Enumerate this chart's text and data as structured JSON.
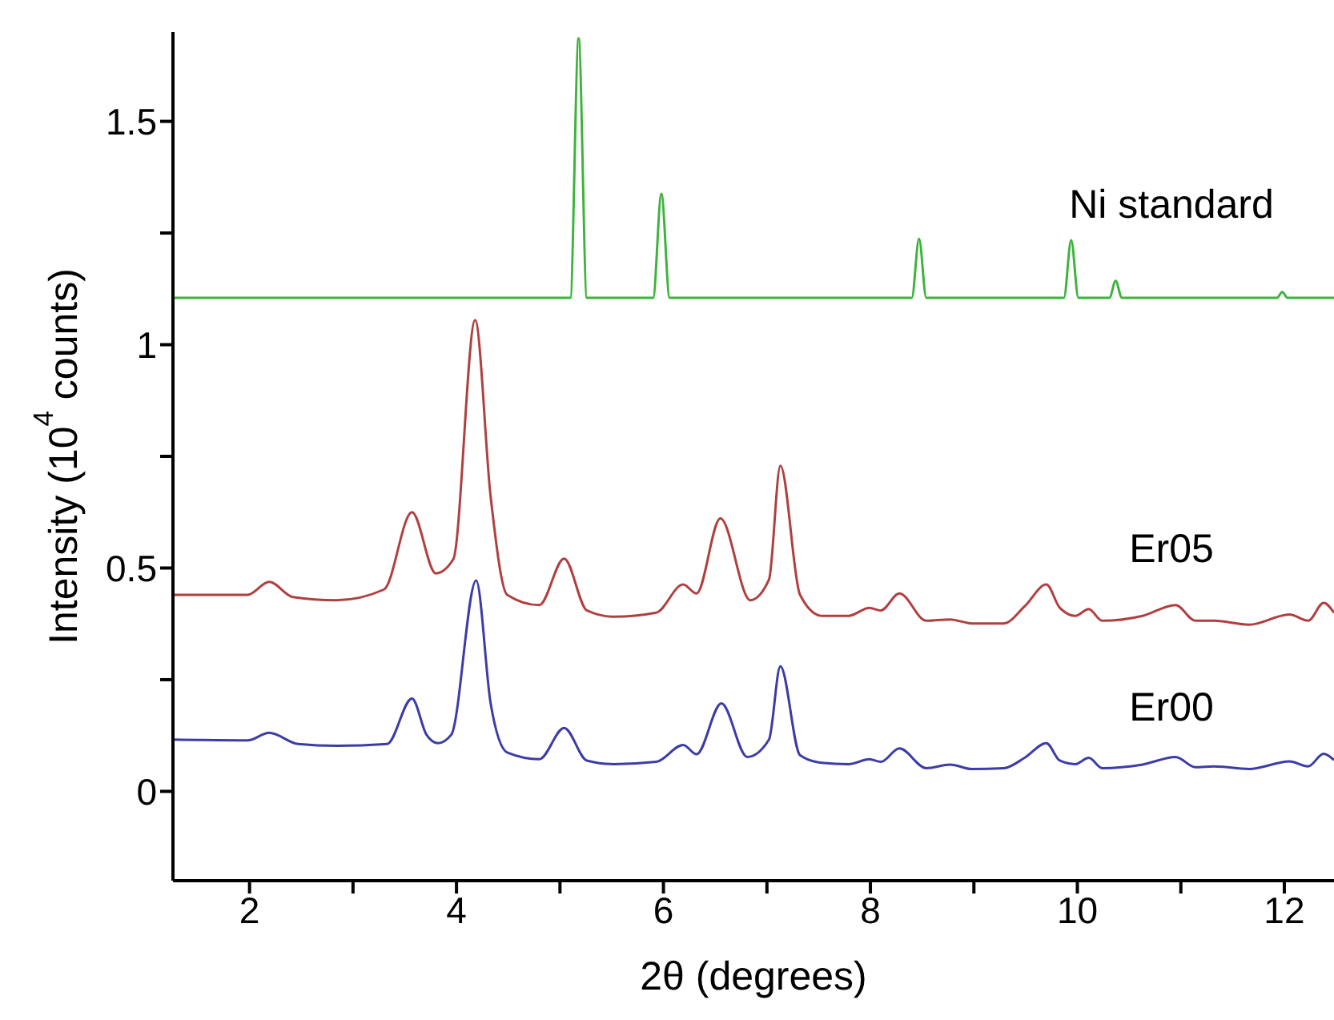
{
  "chart_data": {
    "type": "line",
    "xlabel": "2θ (degrees)",
    "ylabel": "Intensity (10$^{4}$ counts)",
    "xlim": [
      1.26,
      12.48
    ],
    "ylim": [
      -0.2,
      1.7
    ],
    "xticks": [
      2,
      {
        "value": 3,
        "label": null
      },
      4,
      {
        "value": 5,
        "label": null
      },
      6,
      {
        "value": 7,
        "label": null
      },
      8,
      {
        "value": 9,
        "label": null
      },
      10,
      {
        "value": 11,
        "label": null
      },
      12
    ],
    "yticks": [
      0,
      {
        "value": 0.25,
        "label": null
      },
      0.5,
      {
        "value": 0.75,
        "label": null
      },
      1,
      {
        "value": 1.25,
        "label": null
      },
      1.5
    ],
    "marker": "none",
    "line_style": "solid",
    "series": [
      {
        "name": "Ni standard",
        "color": "#3cb43c",
        "x": [
          1.26,
          5.1,
          5.18,
          5.26,
          5.9,
          5.98,
          6.06,
          8.4,
          8.47,
          8.54,
          9.87,
          9.94,
          10.01,
          10.31,
          10.37,
          10.43,
          11.93,
          11.98,
          12.03,
          12.48
        ],
        "values": [
          1.105,
          1.105,
          1.686,
          1.105,
          1.105,
          1.338,
          1.105,
          1.105,
          1.237,
          1.105,
          1.105,
          1.234,
          1.105,
          1.105,
          1.143,
          1.105,
          1.105,
          1.118,
          1.105,
          1.105
        ]
      },
      {
        "name": "Er05",
        "color": "#b04040",
        "x": [
          1.26,
          1.98,
          2.19,
          2.42,
          2.84,
          3.3,
          3.57,
          3.8,
          3.97,
          4.18,
          4.33,
          4.49,
          4.8,
          5.04,
          5.26,
          5.52,
          5.93,
          6.19,
          6.32,
          6.55,
          6.84,
          7.02,
          7.13,
          7.32,
          7.53,
          7.79,
          7.99,
          8.1,
          8.28,
          8.54,
          8.77,
          8.98,
          9.29,
          9.49,
          9.7,
          9.83,
          9.98,
          10.11,
          10.24,
          10.63,
          10.95,
          11.14,
          11.32,
          11.66,
          12.05,
          12.23,
          12.38,
          12.48
        ],
        "values": [
          0.44,
          0.44,
          0.469,
          0.435,
          0.428,
          0.452,
          0.625,
          0.488,
          0.52,
          1.055,
          0.66,
          0.44,
          0.417,
          0.521,
          0.405,
          0.391,
          0.4,
          0.463,
          0.443,
          0.611,
          0.428,
          0.474,
          0.729,
          0.44,
          0.393,
          0.393,
          0.411,
          0.405,
          0.443,
          0.382,
          0.385,
          0.376,
          0.376,
          0.414,
          0.463,
          0.411,
          0.393,
          0.408,
          0.382,
          0.393,
          0.417,
          0.382,
          0.382,
          0.373,
          0.396,
          0.382,
          0.422,
          0.4
        ]
      },
      {
        "name": "Er00",
        "color": "#3c3ca8",
        "x": [
          1.26,
          1.98,
          2.19,
          2.47,
          2.84,
          3.33,
          3.57,
          3.71,
          3.82,
          3.95,
          4.19,
          4.33,
          4.49,
          4.8,
          5.04,
          5.26,
          5.52,
          5.93,
          6.19,
          6.32,
          6.56,
          6.81,
          7.02,
          7.13,
          7.32,
          7.53,
          7.79,
          7.99,
          8.1,
          8.28,
          8.54,
          8.77,
          8.98,
          9.29,
          9.49,
          9.7,
          9.83,
          9.98,
          10.11,
          10.24,
          10.63,
          10.95,
          11.14,
          11.32,
          11.66,
          12.05,
          12.23,
          12.38,
          12.48
        ],
        "values": [
          0.116,
          0.114,
          0.131,
          0.106,
          0.102,
          0.106,
          0.208,
          0.127,
          0.108,
          0.127,
          0.472,
          0.197,
          0.087,
          0.072,
          0.142,
          0.069,
          0.061,
          0.066,
          0.104,
          0.083,
          0.197,
          0.077,
          0.116,
          0.28,
          0.081,
          0.064,
          0.061,
          0.072,
          0.066,
          0.096,
          0.052,
          0.06,
          0.05,
          0.052,
          0.075,
          0.108,
          0.069,
          0.061,
          0.075,
          0.052,
          0.06,
          0.077,
          0.054,
          0.056,
          0.05,
          0.067,
          0.056,
          0.084,
          0.07
        ]
      }
    ]
  }
}
